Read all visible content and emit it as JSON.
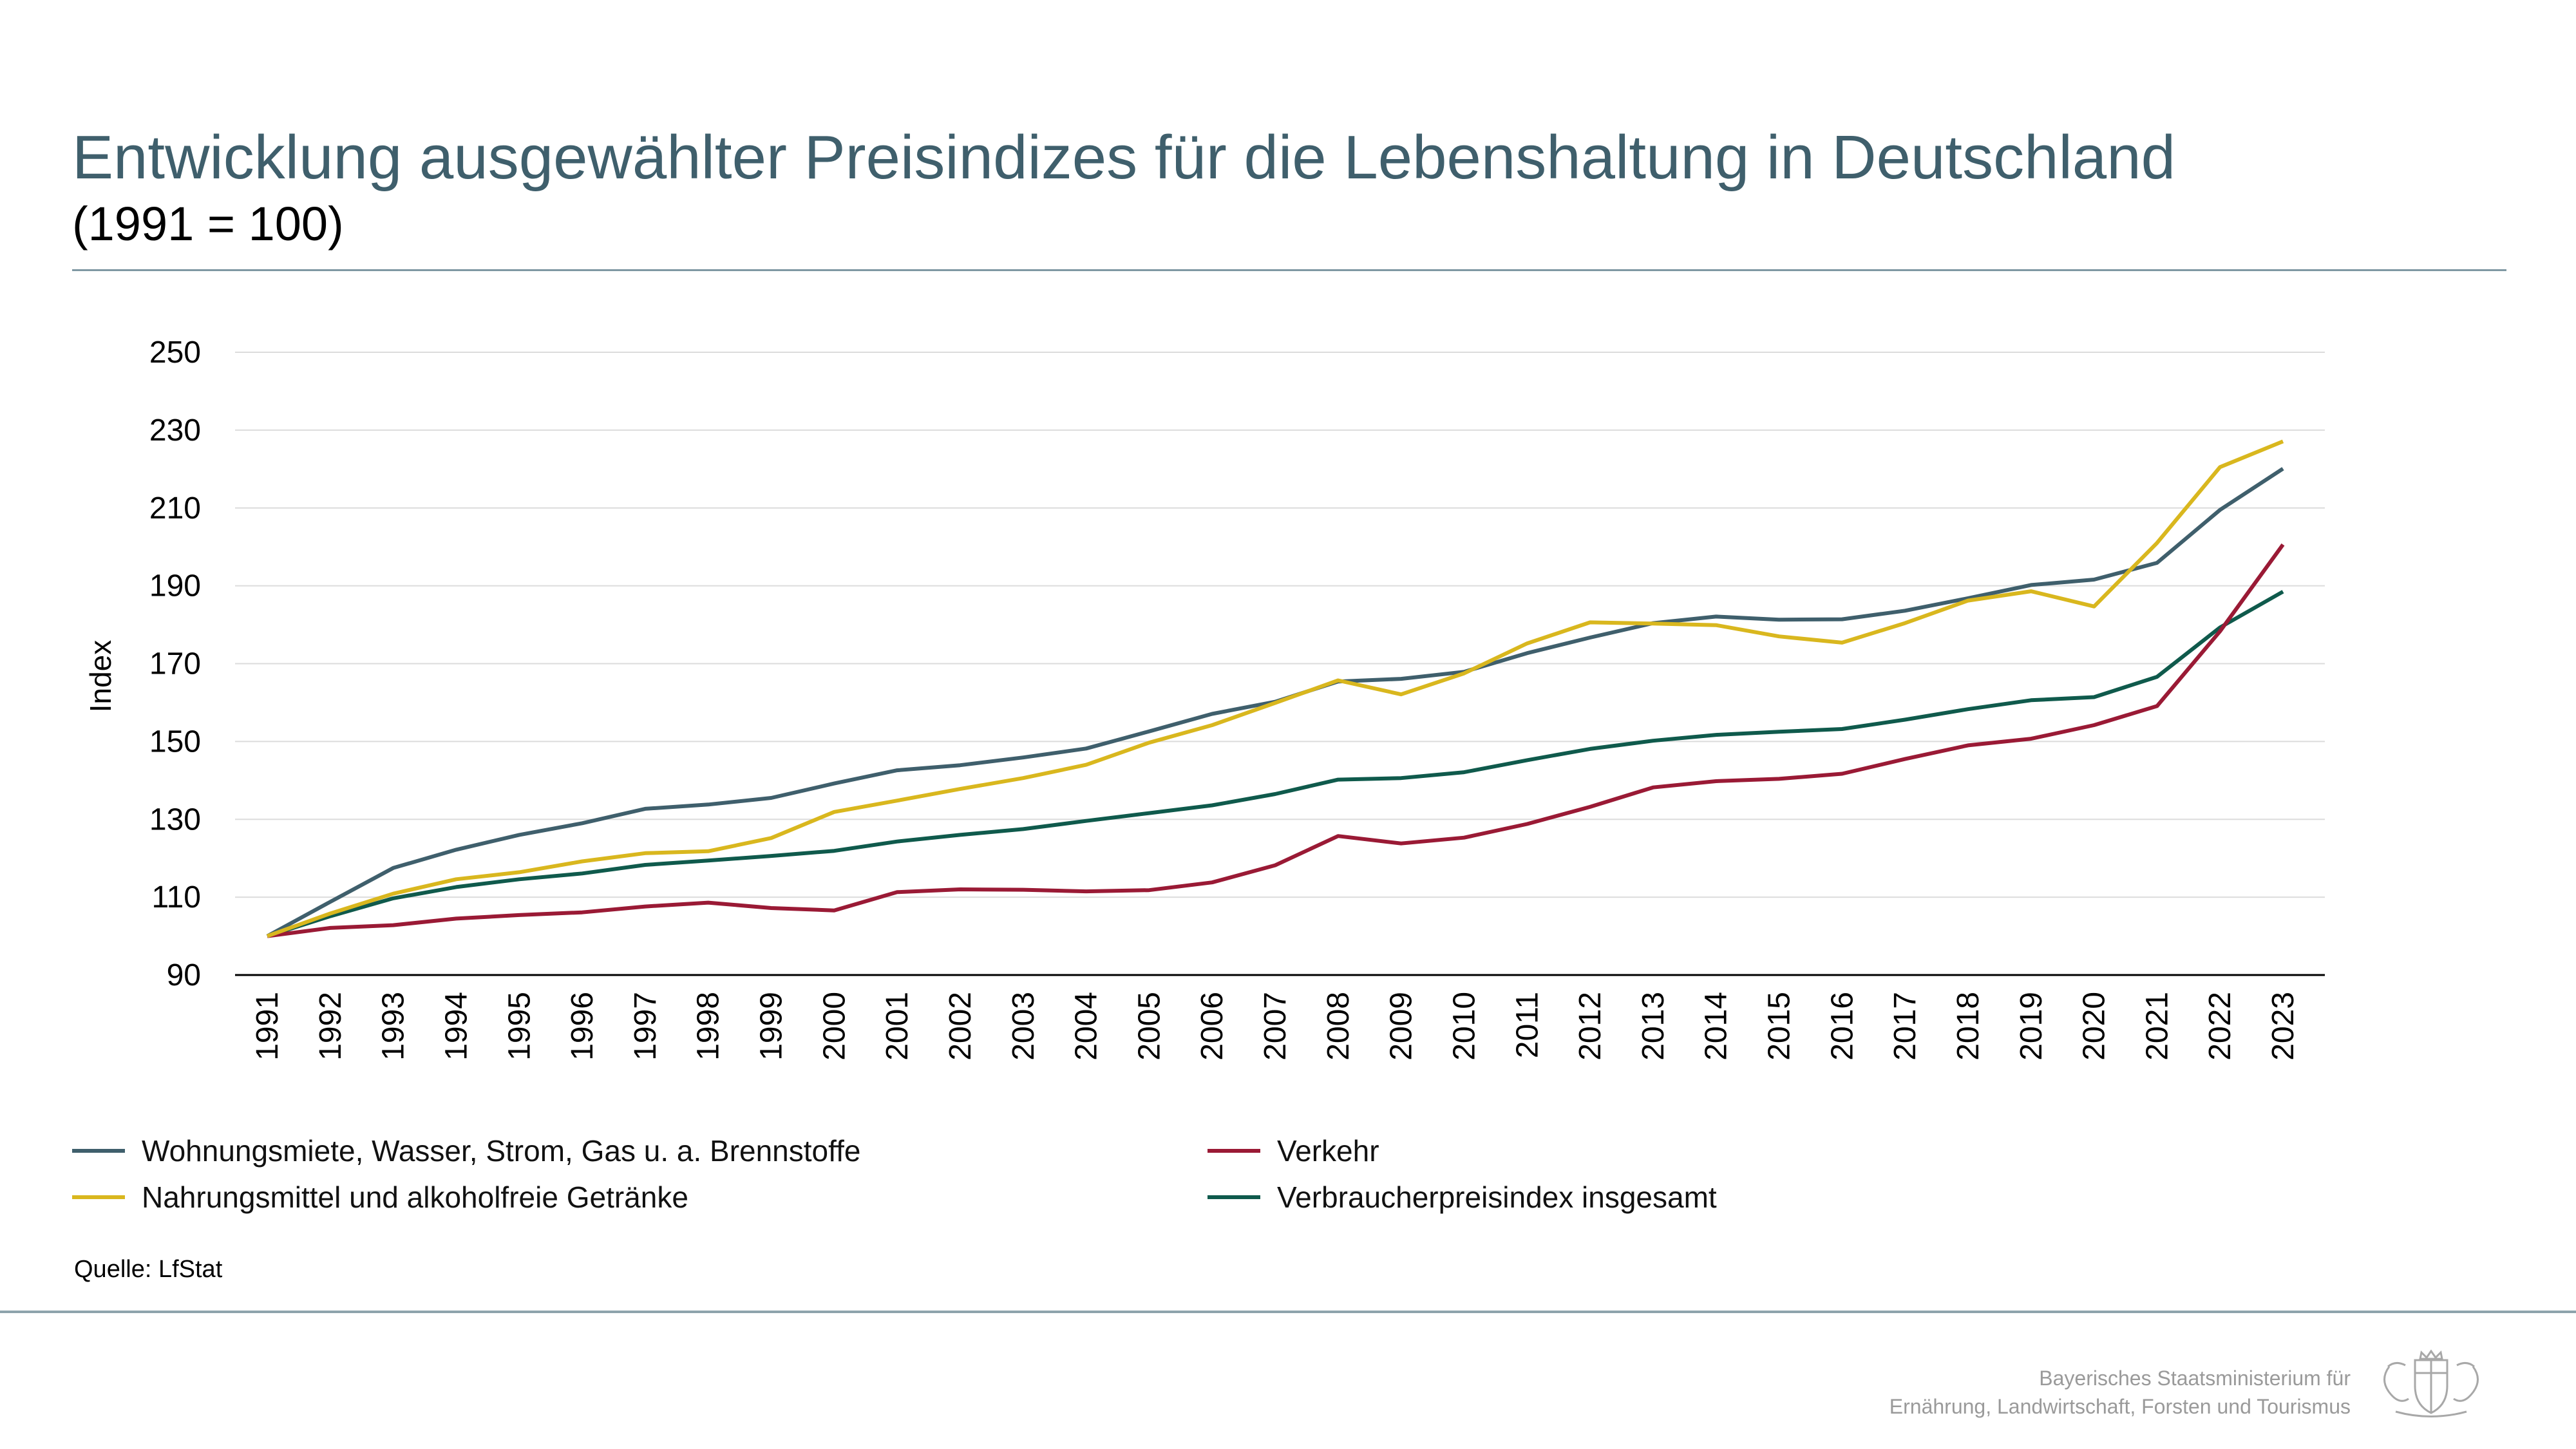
{
  "header": {
    "title": "Entwicklung ausgewählter Preisindizes für die Lebenshaltung in Deutschland",
    "subtitle": "(1991 = 100)"
  },
  "chart_data": {
    "type": "line",
    "ylabel": "Index",
    "ylim": [
      90,
      250
    ],
    "yticks": [
      90,
      110,
      130,
      150,
      170,
      190,
      210,
      230,
      250
    ],
    "grid": true,
    "categories": [
      "1991",
      "1992",
      "1993",
      "1994",
      "1995",
      "1996",
      "1997",
      "1998",
      "1999",
      "2000",
      "2001",
      "2002",
      "2003",
      "2004",
      "2005",
      "2006",
      "2007",
      "2008",
      "2009",
      "2010",
      "2011",
      "2012",
      "2013",
      "2014",
      "2015",
      "2016",
      "2017",
      "2018",
      "2019",
      "2020",
      "2021",
      "2022",
      "2023"
    ],
    "series": [
      {
        "name": "Wohnungsmiete, Wasser, Strom, Gas u. a. Brennstoffe",
        "color": "#3f5f6c",
        "values": [
          100,
          108.8,
          117.5,
          122.2,
          126,
          129,
          132.7,
          133.8,
          135.5,
          139.2,
          142.6,
          143.9,
          145.9,
          148.2,
          152.6,
          157.1,
          160.2,
          165.4,
          166.1,
          167.9,
          172.7,
          176.7,
          180.4,
          182.1,
          181.3,
          181.4,
          183.6,
          186.8,
          190.2,
          191.6,
          195.9,
          209.5,
          220.1
        ]
      },
      {
        "name": "Nahrungsmittel und alkoholfreie Getränke",
        "color": "#d9b71e",
        "values": [
          100,
          105.8,
          110.9,
          114.6,
          116.4,
          119.2,
          121.3,
          121.8,
          125.2,
          131.9,
          134.8,
          137.8,
          140.6,
          144,
          149.7,
          154.2,
          159.9,
          165.7,
          162.1,
          167.5,
          175.2,
          180.6,
          180.3,
          179.9,
          177,
          175.4,
          180.4,
          186.2,
          188.6,
          184.7,
          201,
          220.5,
          227.1
        ]
      },
      {
        "name": "Verkehr",
        "color": "#9a1a35",
        "values": [
          100,
          102.1,
          102.8,
          104.5,
          105.4,
          106.1,
          107.6,
          108.6,
          107.2,
          106.6,
          111.3,
          112,
          111.9,
          111.5,
          111.8,
          113.8,
          118.2,
          125.7,
          123.8,
          125.3,
          128.8,
          133.2,
          138.2,
          139.8,
          140.4,
          141.7,
          145.5,
          149,
          150.7,
          154.2,
          159.1,
          178.3,
          200.6
        ]
      },
      {
        "name": "Verbraucherpreisindex insgesamt",
        "color": "#0f5a4c",
        "values": [
          100,
          105.1,
          109.7,
          112.6,
          114.6,
          116.1,
          118.3,
          119.4,
          120.6,
          121.9,
          124.3,
          126,
          127.5,
          129.6,
          131.6,
          133.6,
          136.5,
          140.2,
          140.6,
          142.1,
          145.2,
          148.1,
          150.2,
          151.7,
          152.5,
          153.2,
          155.6,
          158.3,
          160.6,
          161.4,
          166.6,
          179.3,
          188.5
        ]
      }
    ]
  },
  "legend": {
    "items": [
      {
        "label": "Wohnungsmiete, Wasser, Strom, Gas u. a. Brennstoffe",
        "color": "#3f5f6c"
      },
      {
        "label": "Nahrungsmittel und alkoholfreie Getränke",
        "color": "#d9b71e"
      },
      {
        "label": "Verkehr",
        "color": "#9a1a35"
      },
      {
        "label": "Verbraucherpreisindex insgesamt",
        "color": "#0f5a4c"
      }
    ]
  },
  "footer": {
    "source": "Quelle: LfStat",
    "ministry_line1": "Bayerisches Staatsministerium für",
    "ministry_line2": "Ernährung, Landwirtschaft, Forsten und Tourismus",
    "logo_icon": "bavarian-crest-icon"
  }
}
